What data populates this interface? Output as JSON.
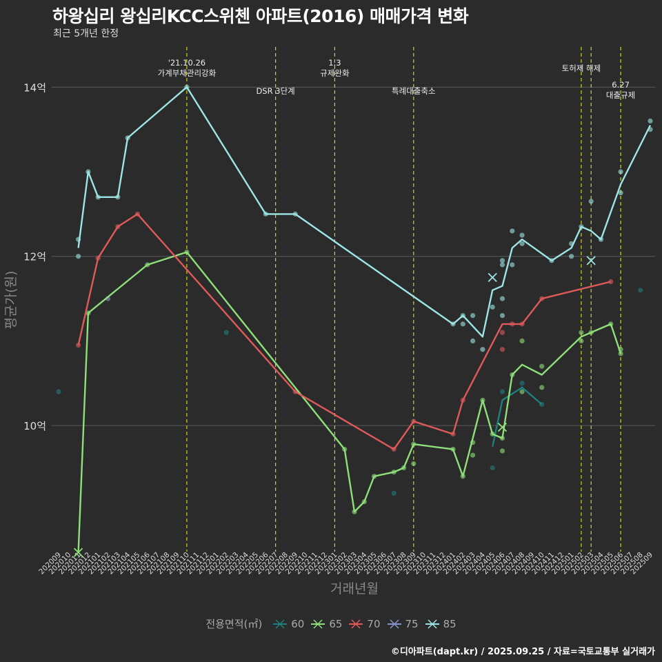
{
  "title": "하왕십리 왕십리KCC스위첸 아파트(2016) 매매가격 변화",
  "subtitle": "최근 5개년 한정",
  "caption": "©디아파트(dapt.kr) / 2025.09.25 / 자료=국토교통부 실거래가",
  "legend": {
    "title": "전용면적(㎡)",
    "items": [
      {
        "label": "60",
        "color": "#1f7f7f"
      },
      {
        "label": "65",
        "color": "#8fe07a"
      },
      {
        "label": "70",
        "color": "#e05a5a"
      },
      {
        "label": "75",
        "color": "#8894cf"
      },
      {
        "label": "85",
        "color": "#9ee6e6"
      }
    ]
  },
  "chart_data": {
    "type": "line",
    "xlabel": "거래년월",
    "ylabel": "평균가(원)",
    "ylim": [
      8.55,
      14.5
    ],
    "yticks": [
      {
        "v": 10,
        "label": "10억"
      },
      {
        "v": 12,
        "label": "12억"
      },
      {
        "v": 14,
        "label": "14억"
      }
    ],
    "categories": [
      "202009",
      "202010",
      "202011",
      "202012",
      "202101",
      "202102",
      "202103",
      "202104",
      "202105",
      "202106",
      "202107",
      "202108",
      "202109",
      "202110",
      "202111",
      "202112",
      "202201",
      "202202",
      "202203",
      "202204",
      "202205",
      "202206",
      "202207",
      "202208",
      "202209",
      "202210",
      "202211",
      "202212",
      "202301",
      "202302",
      "202303",
      "202304",
      "202305",
      "202306",
      "202307",
      "202308",
      "202309",
      "202310",
      "202311",
      "202312",
      "202401",
      "202402",
      "202403",
      "202404",
      "202405",
      "202406",
      "202407",
      "202408",
      "202409",
      "202410",
      "202411",
      "202412",
      "202501",
      "202502",
      "202503",
      "202504",
      "202505",
      "202506",
      "202507",
      "202508",
      "202509"
    ],
    "events": [
      {
        "x": "202110",
        "lines": [
          "'21.10.26",
          "가계부채관리강화"
        ],
        "row": 0
      },
      {
        "x": "202207",
        "lines": [
          "DSR 3단계"
        ],
        "row": 1
      },
      {
        "x": "202301",
        "lines": [
          "1.3",
          "규제완화"
        ],
        "row": 0
      },
      {
        "x": "202309",
        "lines": [
          "특례대출축소"
        ],
        "row": 1
      },
      {
        "x": "202502",
        "lines": [
          "토허제 해제"
        ],
        "row": 2
      },
      {
        "x": "202503",
        "lines": [],
        "row": 2
      },
      {
        "x": "202506",
        "lines": [
          "6.27",
          "대출규제"
        ],
        "row": 3
      }
    ],
    "series": [
      {
        "name": "60",
        "color": "#1f7f7f",
        "line": [
          [
            "202405",
            9.75
          ],
          [
            "202406",
            10.3
          ],
          [
            "202408",
            10.45
          ],
          [
            "202410",
            10.25
          ]
        ],
        "points": [
          [
            "202009",
            10.4
          ],
          [
            "202202",
            11.1
          ],
          [
            "202307",
            9.2
          ],
          [
            "202405",
            9.5
          ],
          [
            "202406",
            10.4
          ],
          [
            "202408",
            10.5
          ],
          [
            "202410",
            10.25
          ],
          [
            "202508",
            11.6
          ]
        ],
        "marks": []
      },
      {
        "name": "65",
        "color": "#8fe07a",
        "line": [
          [
            "202011",
            8.5
          ],
          [
            "202012",
            11.33
          ],
          [
            "202106",
            11.9
          ],
          [
            "202110",
            12.05
          ],
          [
            "202302",
            9.72
          ],
          [
            "202303",
            8.98
          ],
          [
            "202304",
            9.1
          ],
          [
            "202305",
            9.4
          ],
          [
            "202307",
            9.45
          ],
          [
            "202308",
            9.5
          ],
          [
            "202309",
            9.78
          ],
          [
            "202401",
            9.72
          ],
          [
            "202402",
            9.4
          ],
          [
            "202404",
            10.3
          ],
          [
            "202405",
            9.9
          ],
          [
            "202406",
            9.85
          ],
          [
            "202407",
            10.6
          ],
          [
            "202408",
            10.72
          ],
          [
            "202410",
            10.6
          ],
          [
            "202502",
            11.05
          ],
          [
            "202503",
            11.1
          ],
          [
            "202505",
            11.2
          ],
          [
            "202506",
            10.85
          ]
        ],
        "points": [
          [
            "202012",
            11.33
          ],
          [
            "202106",
            11.9
          ],
          [
            "202110",
            12.05
          ],
          [
            "202302",
            9.72
          ],
          [
            "202303",
            8.98
          ],
          [
            "202304",
            9.1
          ],
          [
            "202305",
            9.4
          ],
          [
            "202307",
            9.45
          ],
          [
            "202308",
            9.5
          ],
          [
            "202309",
            9.78
          ],
          [
            "202309",
            9.55
          ],
          [
            "202401",
            9.72
          ],
          [
            "202402",
            9.4
          ],
          [
            "202403",
            9.8
          ],
          [
            "202403",
            9.65
          ],
          [
            "202404",
            10.3
          ],
          [
            "202405",
            9.9
          ],
          [
            "202406",
            9.85
          ],
          [
            "202406",
            9.7
          ],
          [
            "202407",
            10.6
          ],
          [
            "202408",
            11.0
          ],
          [
            "202408",
            10.4
          ],
          [
            "202410",
            10.7
          ],
          [
            "202410",
            10.45
          ],
          [
            "202502",
            11.1
          ],
          [
            "202502",
            11.0
          ],
          [
            "202503",
            11.1
          ],
          [
            "202505",
            11.2
          ],
          [
            "202506",
            10.9
          ],
          [
            "202506",
            10.85
          ]
        ],
        "marks": [
          [
            "202011",
            8.5
          ],
          [
            "202406",
            9.98
          ]
        ]
      },
      {
        "name": "70",
        "color": "#e05a5a",
        "line": [
          [
            "202011",
            10.95
          ],
          [
            "202101",
            11.98
          ],
          [
            "202103",
            12.35
          ],
          [
            "202105",
            12.5
          ],
          [
            "202209",
            10.4
          ],
          [
            "202307",
            9.72
          ],
          [
            "202309",
            10.05
          ],
          [
            "202401",
            9.9
          ],
          [
            "202402",
            10.3
          ],
          [
            "202406",
            11.2
          ],
          [
            "202408",
            11.2
          ],
          [
            "202410",
            11.5
          ],
          [
            "202505",
            11.7
          ]
        ],
        "points": [
          [
            "202011",
            10.95
          ],
          [
            "202101",
            11.98
          ],
          [
            "202103",
            12.35
          ],
          [
            "202105",
            12.5
          ],
          [
            "202209",
            10.4
          ],
          [
            "202307",
            9.72
          ],
          [
            "202309",
            10.05
          ],
          [
            "202401",
            9.9
          ],
          [
            "202402",
            10.3
          ],
          [
            "202406",
            10.9
          ],
          [
            "202406",
            11.1
          ],
          [
            "202407",
            11.2
          ],
          [
            "202408",
            11.2
          ],
          [
            "202410",
            11.5
          ],
          [
            "202505",
            11.7
          ]
        ],
        "marks": []
      },
      {
        "name": "75",
        "color": "#8894cf",
        "line": [],
        "points": [
          [
            "202102",
            11.5
          ]
        ],
        "marks": []
      },
      {
        "name": "85",
        "color": "#9ee6e6",
        "line": [
          [
            "202011",
            12.1
          ],
          [
            "202012",
            13.0
          ],
          [
            "202101",
            12.7
          ],
          [
            "202103",
            12.7
          ],
          [
            "202104",
            13.4
          ],
          [
            "202110",
            14.0
          ],
          [
            "202206",
            12.5
          ],
          [
            "202209",
            12.5
          ],
          [
            "202401",
            11.2
          ],
          [
            "202402",
            11.3
          ],
          [
            "202404",
            11.05
          ],
          [
            "202405",
            11.6
          ],
          [
            "202406",
            11.65
          ],
          [
            "202407",
            12.1
          ],
          [
            "202408",
            12.2
          ],
          [
            "202411",
            11.95
          ],
          [
            "202501",
            12.1
          ],
          [
            "202502",
            12.35
          ],
          [
            "202503",
            12.3
          ],
          [
            "202504",
            12.2
          ],
          [
            "202506",
            12.85
          ],
          [
            "202509",
            13.55
          ]
        ],
        "points": [
          [
            "202011",
            12.2
          ],
          [
            "202011",
            12.0
          ],
          [
            "202012",
            13.0
          ],
          [
            "202101",
            12.7
          ],
          [
            "202103",
            12.7
          ],
          [
            "202104",
            13.4
          ],
          [
            "202110",
            14.0
          ],
          [
            "202206",
            12.5
          ],
          [
            "202209",
            12.5
          ],
          [
            "202401",
            11.2
          ],
          [
            "202402",
            11.3
          ],
          [
            "202402",
            11.2
          ],
          [
            "202403",
            11.3
          ],
          [
            "202403",
            11.0
          ],
          [
            "202404",
            10.9
          ],
          [
            "202405",
            11.4
          ],
          [
            "202406",
            11.95
          ],
          [
            "202406",
            11.9
          ],
          [
            "202406",
            11.5
          ],
          [
            "202406",
            11.3
          ],
          [
            "202407",
            12.3
          ],
          [
            "202407",
            11.9
          ],
          [
            "202408",
            12.25
          ],
          [
            "202408",
            12.15
          ],
          [
            "202411",
            11.95
          ],
          [
            "202501",
            12.15
          ],
          [
            "202501",
            12.0
          ],
          [
            "202502",
            12.35
          ],
          [
            "202503",
            12.65
          ],
          [
            "202504",
            12.2
          ],
          [
            "202506",
            13.0
          ],
          [
            "202506",
            12.75
          ],
          [
            "202509",
            13.6
          ],
          [
            "202509",
            13.5
          ]
        ],
        "marks": [
          [
            "202405",
            11.75
          ],
          [
            "202503",
            11.95
          ]
        ]
      }
    ]
  }
}
